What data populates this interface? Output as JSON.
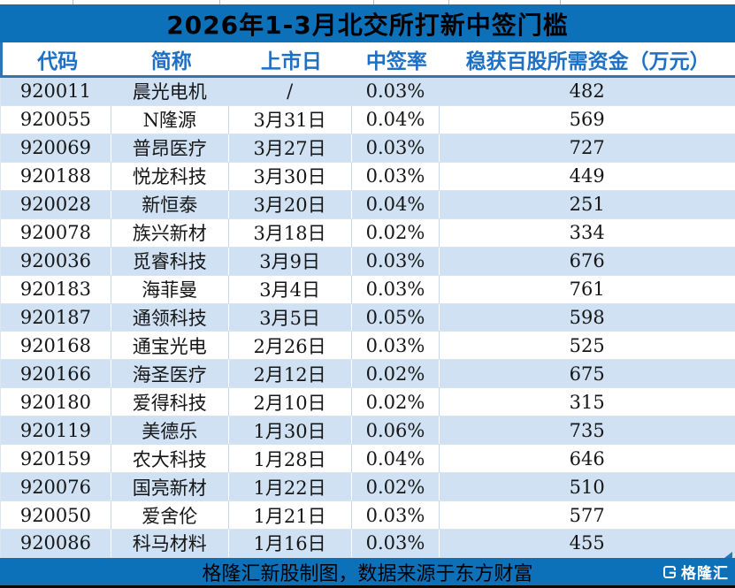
{
  "title": "2026年1-3月北交所打新中签门槛",
  "chart_data": {
    "type": "table",
    "title": "2026年1-3月北交所打新中签门槛",
    "columns": [
      "代码",
      "简称",
      "上市日",
      "中签率",
      "稳获百股所需资金（万元）"
    ],
    "rows": [
      [
        "920011",
        "晨光电机",
        "/",
        "0.03%",
        "482"
      ],
      [
        "920055",
        "N隆源",
        "3月31日",
        "0.04%",
        "569"
      ],
      [
        "920069",
        "普昂医疗",
        "3月27日",
        "0.03%",
        "727"
      ],
      [
        "920188",
        "悦龙科技",
        "3月30日",
        "0.03%",
        "449"
      ],
      [
        "920028",
        "新恒泰",
        "3月20日",
        "0.04%",
        "251"
      ],
      [
        "920078",
        "族兴新材",
        "3月18日",
        "0.02%",
        "334"
      ],
      [
        "920036",
        "觅睿科技",
        "3月9日",
        "0.03%",
        "676"
      ],
      [
        "920183",
        "海菲曼",
        "3月4日",
        "0.03%",
        "761"
      ],
      [
        "920187",
        "通领科技",
        "3月5日",
        "0.05%",
        "598"
      ],
      [
        "920168",
        "通宝光电",
        "2月26日",
        "0.03%",
        "525"
      ],
      [
        "920166",
        "海圣医疗",
        "2月12日",
        "0.02%",
        "675"
      ],
      [
        "920180",
        "爱得科技",
        "2月10日",
        "0.02%",
        "315"
      ],
      [
        "920119",
        "美德乐",
        "1月30日",
        "0.06%",
        "735"
      ],
      [
        "920159",
        "农大科技",
        "1月28日",
        "0.04%",
        "646"
      ],
      [
        "920076",
        "国亮新材",
        "1月22日",
        "0.02%",
        "510"
      ],
      [
        "920050",
        "爱舍伦",
        "1月21日",
        "0.03%",
        "577"
      ],
      [
        "920086",
        "科马材料",
        "1月16日",
        "0.03%",
        "455"
      ]
    ]
  },
  "footer": {
    "note": "格隆汇新股制图，数据来源于东方财富",
    "logo_text": "格隆汇"
  },
  "colors": {
    "banner_blue": "#0d71ba",
    "row_light_blue": "#cfe1f2",
    "header_text_blue": "#1e70c5",
    "separator_blue": "#2e74b5"
  }
}
